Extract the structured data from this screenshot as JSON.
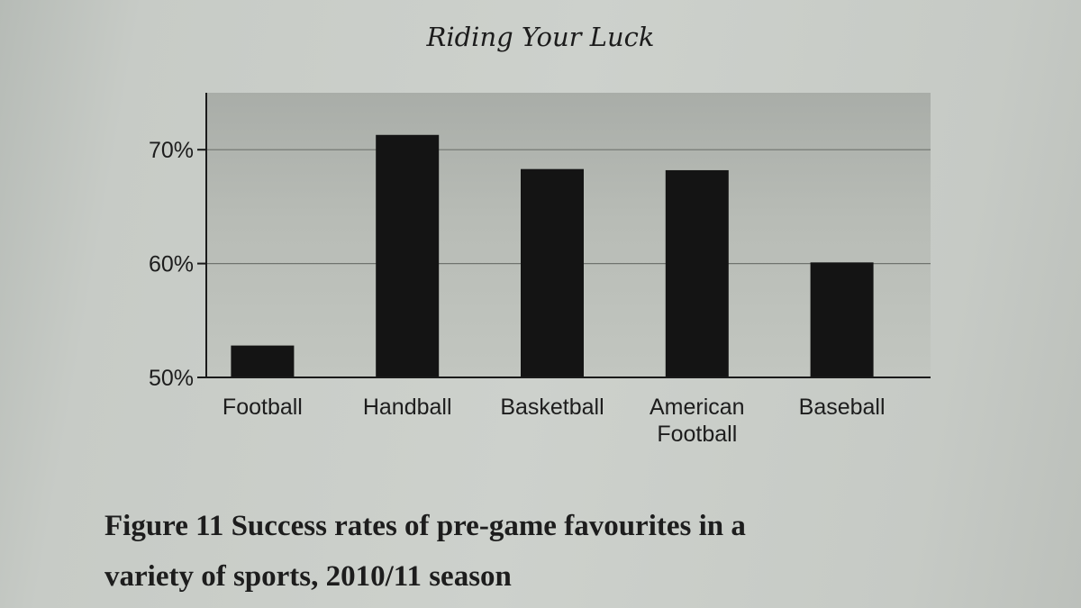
{
  "page": {
    "running_head": "Riding Your Luck"
  },
  "caption": {
    "figure_label": "Figure",
    "figure_number": "11",
    "text_line1": "Success rates of pre-game favourites in a",
    "text_line2": "variety of sports, 2010/11 season"
  },
  "colors": {
    "bar": "#141414",
    "plot_background": "#b5b9b3",
    "gridline": "#6f736e",
    "axis": "#1a1a1a",
    "text": "#1d1d1d"
  },
  "chart_data": {
    "type": "bar",
    "categories": [
      "Football",
      "Handball",
      "Basketball",
      "American Football",
      "Baseball"
    ],
    "category_label_lines": [
      [
        "Football"
      ],
      [
        "Handball"
      ],
      [
        "Basketball"
      ],
      [
        "American",
        "Football"
      ],
      [
        "Baseball"
      ]
    ],
    "values": [
      52.8,
      71.3,
      68.3,
      68.2,
      60.1
    ],
    "value_unit": "%",
    "ylim": [
      50,
      75
    ],
    "yticks": [
      50,
      60,
      70
    ],
    "ytick_labels": [
      "50%",
      "60%",
      "70%"
    ],
    "grid": "horizontal",
    "title": "",
    "xlabel": "",
    "ylabel": ""
  }
}
